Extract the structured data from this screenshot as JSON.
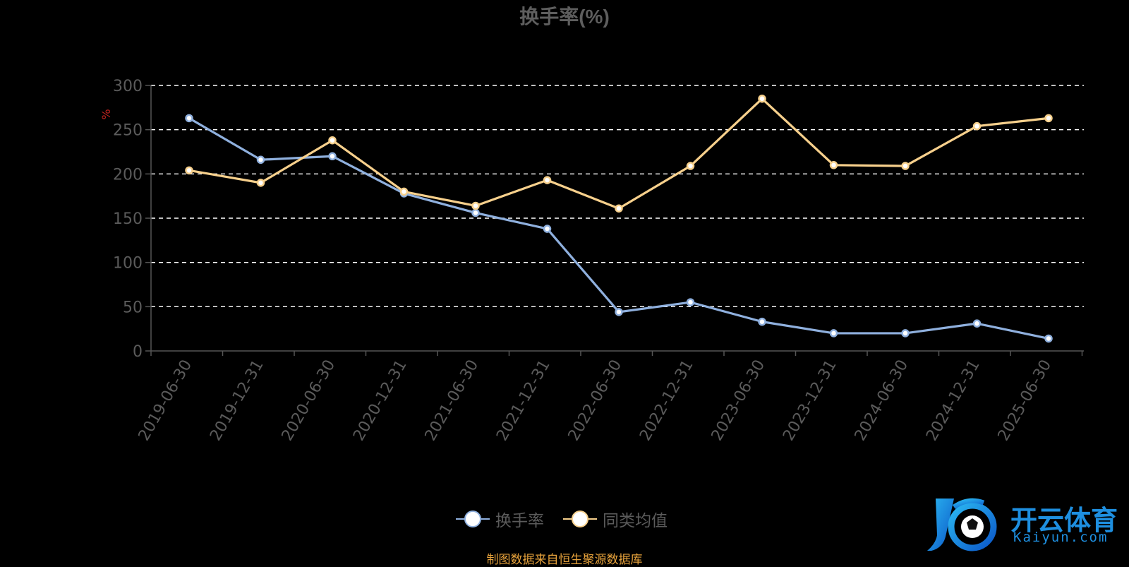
{
  "chart_data": {
    "type": "line",
    "title": "换手率(%)",
    "ylabel": "%",
    "ylim": [
      0,
      300
    ],
    "yticks": [
      0,
      50,
      100,
      150,
      200,
      250,
      300
    ],
    "grid": true,
    "legend_position": "bottom",
    "categories": [
      "2019-06-30",
      "2019-12-31",
      "2020-06-30",
      "2020-12-31",
      "2021-06-30",
      "2021-12-31",
      "2022-06-30",
      "2022-12-31",
      "2023-06-30",
      "2023-12-31",
      "2024-06-30",
      "2024-12-31",
      "2025-06-30"
    ],
    "series": [
      {
        "name": "换手率",
        "color": "#8fb0de",
        "values": [
          263,
          216,
          220,
          178,
          156,
          138,
          44,
          55,
          33,
          20,
          20,
          31,
          14
        ]
      },
      {
        "name": "同类均值",
        "color": "#f7d08c",
        "values": [
          204,
          190,
          238,
          180,
          164,
          193,
          161,
          209,
          285,
          210,
          209,
          254,
          263
        ]
      }
    ]
  },
  "footer": {
    "source": "制图数据来自恒生聚源数据库"
  },
  "logo": {
    "name": "开云体育",
    "sub": "Kaiyun.com"
  }
}
